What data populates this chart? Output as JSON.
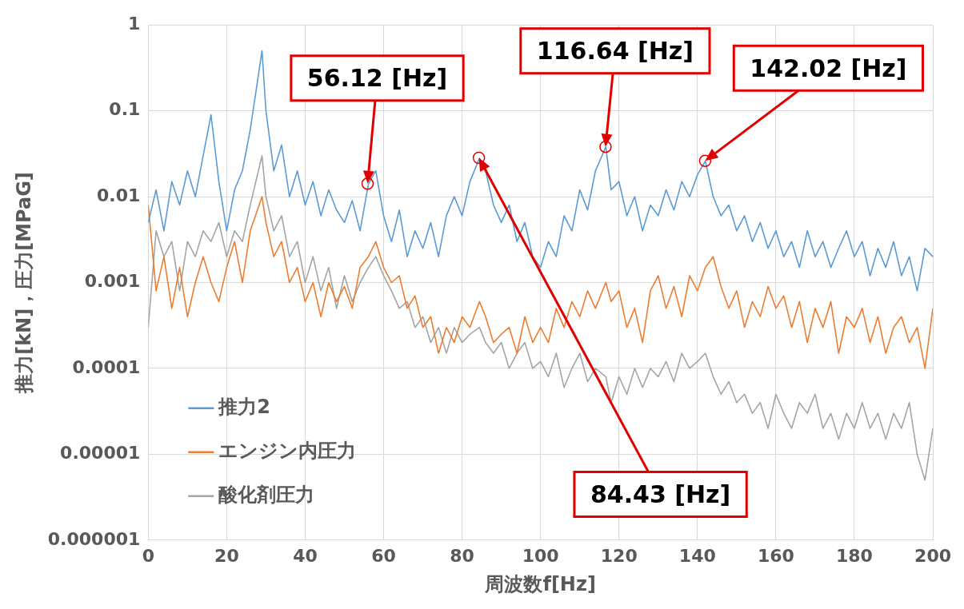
{
  "chart_data": {
    "type": "line",
    "xlabel": "周波数f[Hz]",
    "ylabel": "推力[kN]，圧力[MPaG]",
    "x": [
      0,
      2,
      4,
      6,
      8,
      10,
      12,
      14,
      16,
      18,
      20,
      22,
      24,
      26,
      29,
      30,
      32,
      34,
      36,
      38,
      40,
      42,
      44,
      46,
      48,
      50,
      52,
      54,
      56.12,
      58,
      60,
      62,
      64,
      66,
      68,
      70,
      72,
      74,
      76,
      78,
      80,
      82,
      84.43,
      86,
      88,
      90,
      92,
      94,
      96,
      98,
      100,
      102,
      104,
      106,
      108,
      110,
      112,
      114,
      116.64,
      118,
      120,
      122,
      124,
      126,
      128,
      130,
      132,
      134,
      136,
      138,
      140,
      142.02,
      144,
      146,
      148,
      150,
      152,
      154,
      156,
      158,
      160,
      162,
      164,
      166,
      168,
      170,
      172,
      174,
      176,
      178,
      180,
      182,
      184,
      186,
      188,
      190,
      192,
      194,
      196,
      198,
      200
    ],
    "series": [
      {
        "name": "推力2",
        "color": "#5b9bd5",
        "values": [
          0.005,
          0.012,
          0.004,
          0.015,
          0.008,
          0.02,
          0.01,
          0.03,
          0.09,
          0.015,
          0.004,
          0.012,
          0.02,
          0.06,
          0.5,
          0.1,
          0.02,
          0.04,
          0.01,
          0.02,
          0.008,
          0.015,
          0.006,
          0.012,
          0.007,
          0.005,
          0.009,
          0.004,
          0.014,
          0.02,
          0.006,
          0.003,
          0.007,
          0.002,
          0.004,
          0.0025,
          0.005,
          0.002,
          0.006,
          0.01,
          0.006,
          0.015,
          0.028,
          0.02,
          0.008,
          0.005,
          0.008,
          0.003,
          0.005,
          0.002,
          0.0015,
          0.003,
          0.002,
          0.006,
          0.004,
          0.012,
          0.007,
          0.02,
          0.038,
          0.012,
          0.015,
          0.006,
          0.01,
          0.004,
          0.008,
          0.006,
          0.012,
          0.007,
          0.015,
          0.01,
          0.018,
          0.026,
          0.01,
          0.006,
          0.008,
          0.004,
          0.006,
          0.003,
          0.005,
          0.0025,
          0.004,
          0.002,
          0.003,
          0.0015,
          0.004,
          0.002,
          0.003,
          0.0015,
          0.0025,
          0.004,
          0.002,
          0.003,
          0.0012,
          0.0025,
          0.0015,
          0.003,
          0.0012,
          0.002,
          0.0008,
          0.0025,
          0.002
        ]
      },
      {
        "name": "エンジン内圧力",
        "color": "#ed7d31",
        "values": [
          0.008,
          0.0008,
          0.002,
          0.0005,
          0.0015,
          0.0004,
          0.001,
          0.002,
          0.001,
          0.0006,
          0.0015,
          0.003,
          0.001,
          0.004,
          0.01,
          0.005,
          0.002,
          0.003,
          0.001,
          0.0015,
          0.0006,
          0.001,
          0.0004,
          0.001,
          0.0006,
          0.0009,
          0.0005,
          0.0015,
          0.002,
          0.003,
          0.0015,
          0.001,
          0.0012,
          0.0005,
          0.0007,
          0.0003,
          0.0004,
          0.00015,
          0.0003,
          0.0002,
          0.0004,
          0.0003,
          0.0006,
          0.0004,
          0.0002,
          0.00025,
          0.0003,
          0.00015,
          0.0004,
          0.0002,
          0.0003,
          0.0002,
          0.0005,
          0.0003,
          0.0006,
          0.0004,
          0.0008,
          0.0005,
          0.001,
          0.0006,
          0.0008,
          0.0003,
          0.0005,
          0.0002,
          0.0008,
          0.0012,
          0.0005,
          0.0009,
          0.0004,
          0.0012,
          0.0008,
          0.0015,
          0.002,
          0.0009,
          0.0005,
          0.0008,
          0.0003,
          0.0006,
          0.0004,
          0.0009,
          0.0005,
          0.0007,
          0.0003,
          0.0006,
          0.0002,
          0.0005,
          0.0003,
          0.0006,
          0.00015,
          0.0004,
          0.0003,
          0.0005,
          0.0002,
          0.0004,
          0.00015,
          0.0003,
          0.0004,
          0.0002,
          0.0003,
          0.0001,
          0.0005
        ]
      },
      {
        "name": "酸化剤圧力",
        "color": "#a5a5a5",
        "values": [
          0.0003,
          0.004,
          0.002,
          0.003,
          0.0008,
          0.003,
          0.002,
          0.004,
          0.003,
          0.005,
          0.002,
          0.004,
          0.003,
          0.008,
          0.03,
          0.01,
          0.004,
          0.006,
          0.002,
          0.003,
          0.001,
          0.002,
          0.0008,
          0.0015,
          0.0005,
          0.0012,
          0.0006,
          0.001,
          0.0015,
          0.002,
          0.0012,
          0.0008,
          0.0005,
          0.0006,
          0.0003,
          0.0004,
          0.0002,
          0.0003,
          0.00015,
          0.0003,
          0.0002,
          0.00025,
          0.0003,
          0.0002,
          0.00015,
          0.0002,
          0.0001,
          0.00015,
          0.0002,
          0.0001,
          0.00012,
          8e-05,
          0.00015,
          6e-05,
          0.0001,
          0.00015,
          7e-05,
          0.0001,
          8e-05,
          4e-05,
          8e-05,
          5e-05,
          0.0001,
          6e-05,
          0.0001,
          8e-05,
          0.00012,
          7e-05,
          0.00015,
          0.0001,
          0.00012,
          0.00015,
          8e-05,
          5e-05,
          7e-05,
          4e-05,
          5e-05,
          3e-05,
          4e-05,
          2e-05,
          5e-05,
          3e-05,
          2e-05,
          4e-05,
          3e-05,
          5e-05,
          2e-05,
          3e-05,
          1.5e-05,
          3e-05,
          2e-05,
          4e-05,
          2e-05,
          3e-05,
          1.5e-05,
          3e-05,
          2e-05,
          4e-05,
          1e-05,
          5e-06,
          2e-05
        ]
      }
    ],
    "xlim": [
      0,
      200
    ],
    "xticks": [
      0,
      20,
      40,
      60,
      80,
      100,
      120,
      140,
      160,
      180,
      200
    ],
    "ylim": [
      1e-06,
      1
    ],
    "yticks": [
      {
        "value": 1e-06,
        "label": "0.000001"
      },
      {
        "value": 1e-05,
        "label": "0.00001"
      },
      0.0001,
      0.001,
      0.01,
      0.1,
      1
    ],
    "log": "y",
    "grid": true,
    "legend": "bottom left",
    "marker": "none",
    "line_style": "solid",
    "annotations": [
      "56.12 [Hz]",
      "84.43 [Hz]",
      "116.64 [Hz]",
      "142.02 [Hz]"
    ]
  }
}
